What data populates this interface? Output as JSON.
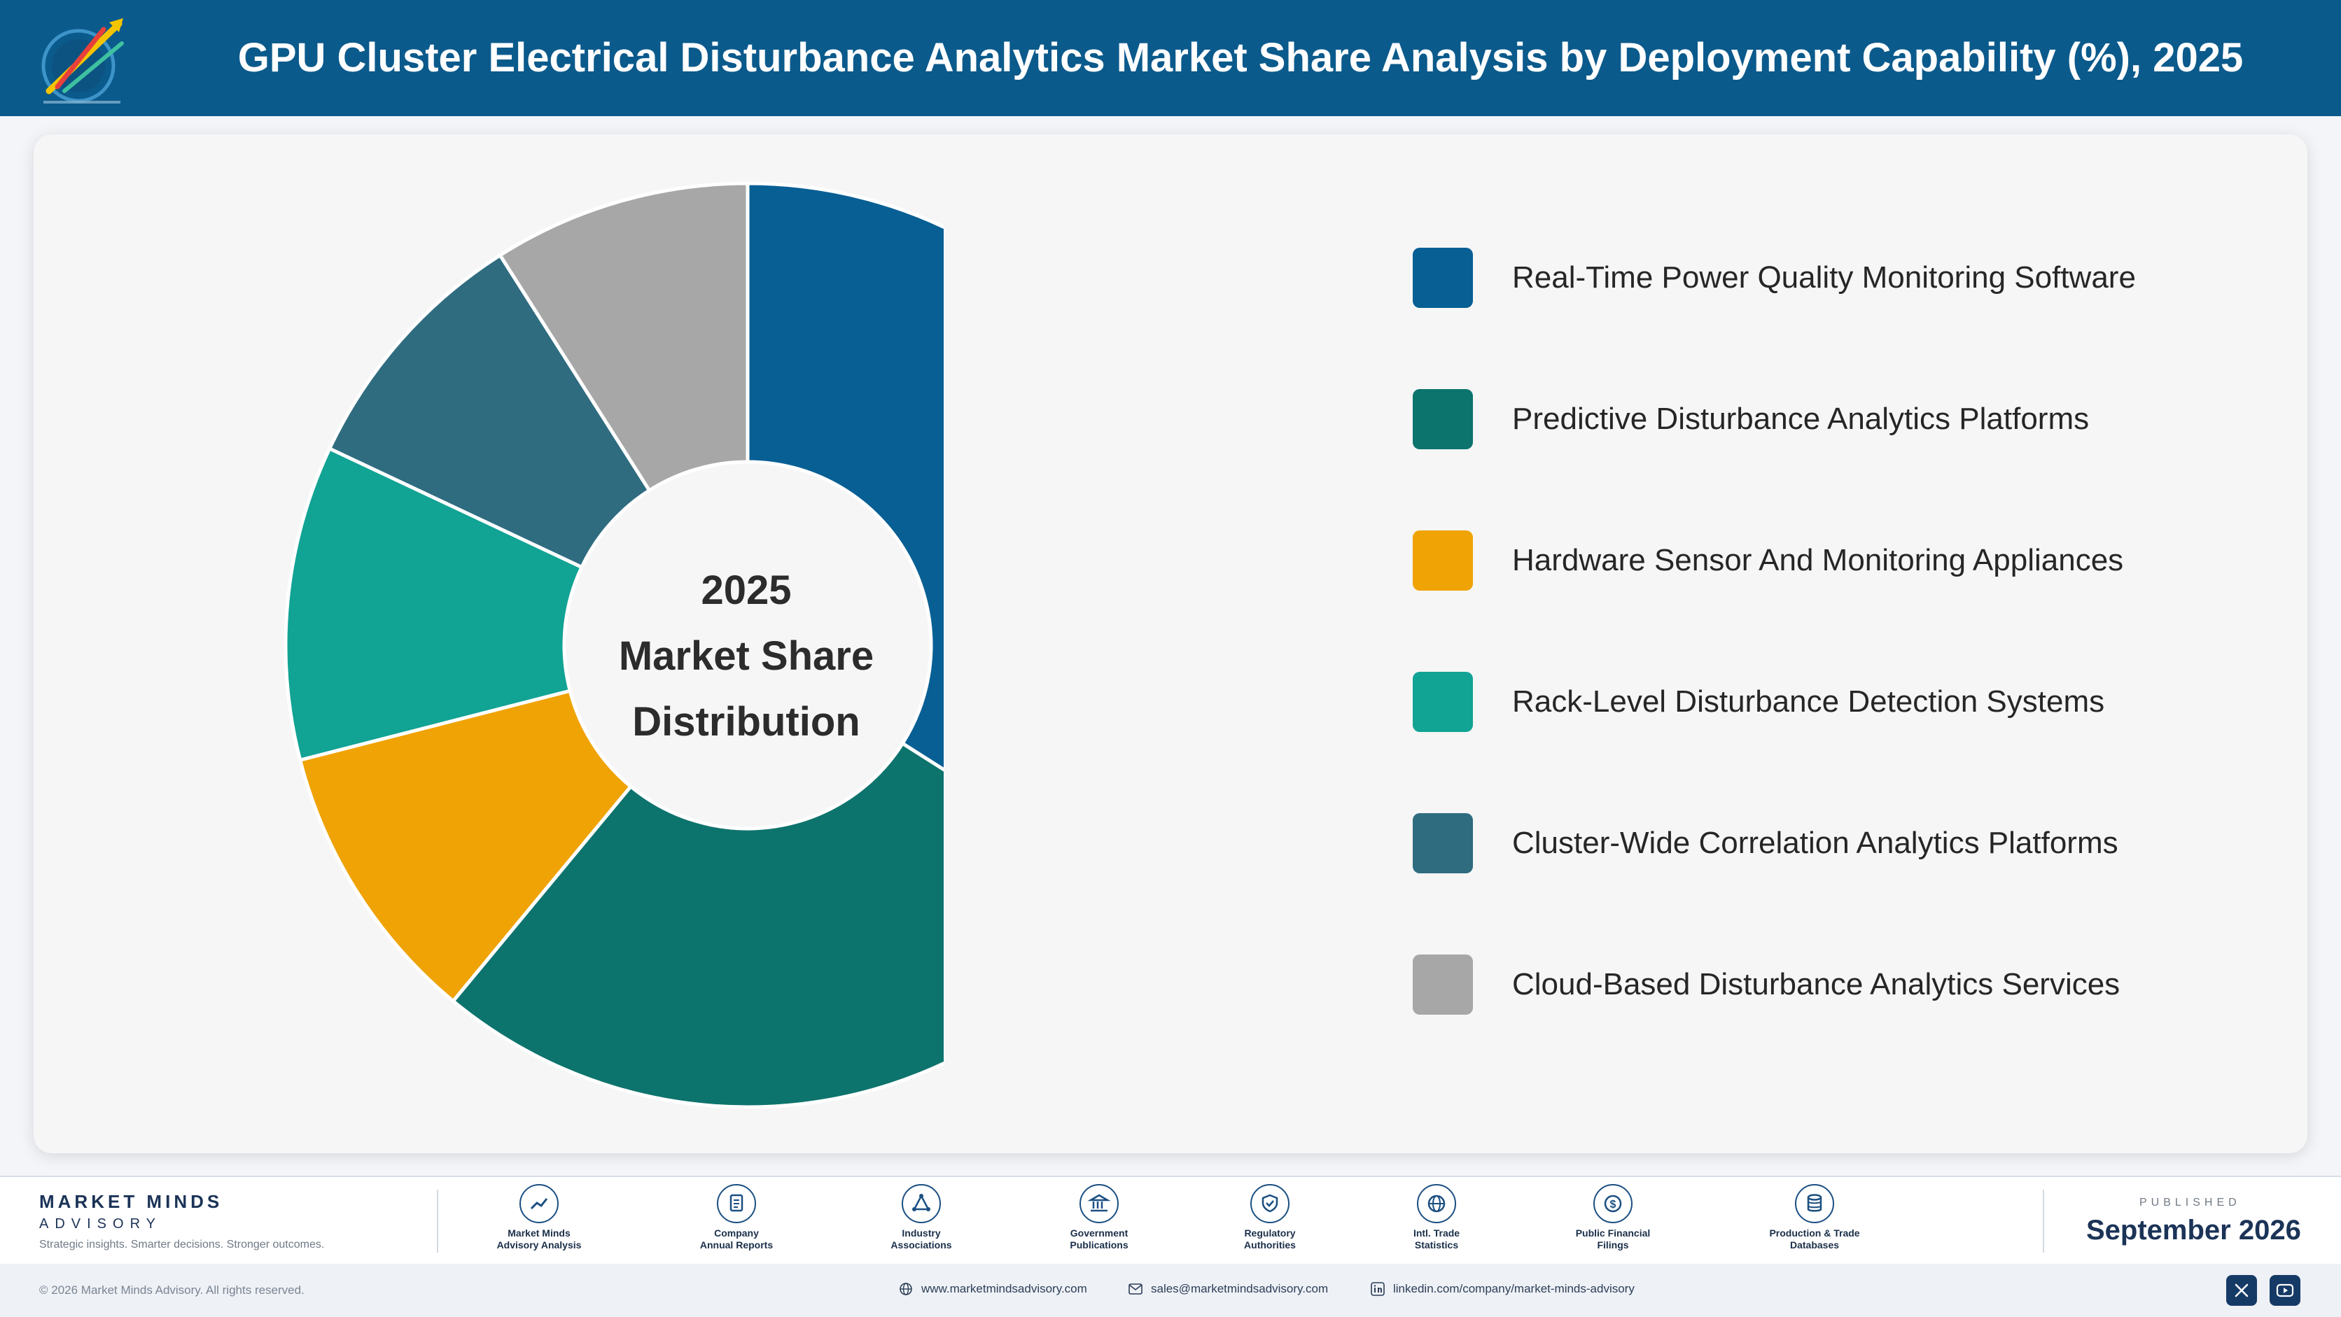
{
  "header": {
    "title": "GPU Cluster Electrical Disturbance Analytics Market Share Analysis by Deployment Capability (%), 2025",
    "logo_text": "Market Minds Advisory"
  },
  "chart_data": {
    "type": "pie",
    "variant": "donut",
    "center_label": [
      "2025",
      "Market Share",
      "Distribution"
    ],
    "categories": [
      "Real-Time Power Quality Monitoring Software",
      "Predictive Disturbance Analytics Platforms",
      "Hardware Sensor And Monitoring Appliances",
      "Rack-Level Disturbance Detection Systems",
      "Cluster-Wide Correlation Analytics Platforms",
      "Cloud-Based Disturbance Analytics Services"
    ],
    "values": [
      34,
      27,
      10,
      11,
      9,
      9
    ],
    "colors": [
      "#075f94",
      "#0d736d",
      "#efa305",
      "#11a394",
      "#2f6c80",
      "#a7a7a7"
    ],
    "legend": "right"
  },
  "footer": {
    "brand_name": "MARKET MINDS",
    "brand_sub": "ADVISORY",
    "brand_tagline": "Strategic insights. Smarter decisions. Stronger outcomes.",
    "sources": [
      {
        "line1": "Market Minds",
        "line2": "Advisory Analysis",
        "icon": "chart-line-icon"
      },
      {
        "line1": "Company",
        "line2": "Annual Reports",
        "icon": "document-icon"
      },
      {
        "line1": "Industry",
        "line2": "Associations",
        "icon": "network-icon"
      },
      {
        "line1": "Government",
        "line2": "Publications",
        "icon": "building-icon"
      },
      {
        "line1": "Regulatory",
        "line2": "Authorities",
        "icon": "shield-icon"
      },
      {
        "line1": "Intl. Trade",
        "line2": "Statistics",
        "icon": "globe-icon"
      },
      {
        "line1": "Public Financial",
        "line2": "Filings",
        "icon": "dollar-icon"
      },
      {
        "line1": "Production & Trade",
        "line2": "Databases",
        "icon": "database-icon"
      }
    ],
    "published_label": "PUBLISHED",
    "published_date": "September 2026"
  },
  "bottombar": {
    "copyright": "© 2026 Market Minds Advisory. All rights reserved.",
    "website": "www.marketmindsadvisory.com",
    "email": "sales@marketmindsadvisory.com",
    "linkedin": "linkedin.com/company/market-minds-advisory"
  }
}
